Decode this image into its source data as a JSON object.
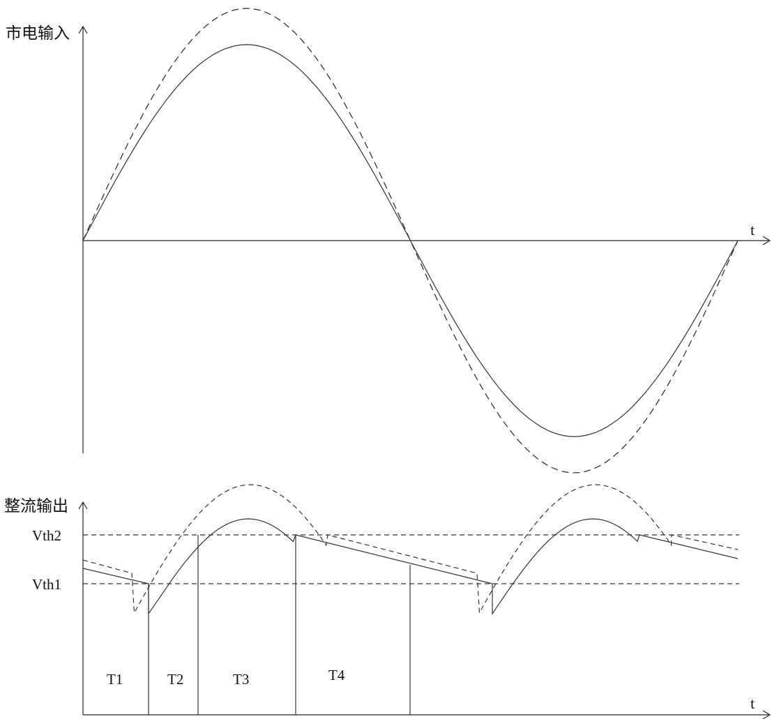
{
  "top_panel": {
    "y_label": "市电输入",
    "x_label": "t"
  },
  "bottom_panel": {
    "y_label": "整流输出",
    "x_label": "t",
    "thresholds": [
      {
        "label": "Vth2"
      },
      {
        "label": "Vth1"
      }
    ],
    "intervals": [
      "T1",
      "T2",
      "T3",
      "T4"
    ]
  }
}
